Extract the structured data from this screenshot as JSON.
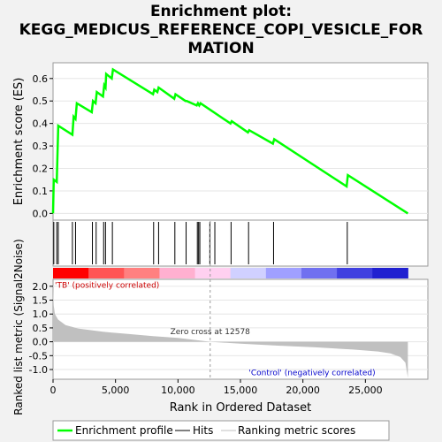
{
  "chart_data": {
    "type": "line",
    "title_lines": [
      "Enrichment plot:",
      "KEGG_MEDICUS_REFERENCE_COPI_VESICLE_FOR",
      "MATION"
    ],
    "es_panel": {
      "ylabel": "Enrichment score (ES)",
      "ylim": [
        -0.03,
        0.67
      ],
      "yticks": [
        "0.0",
        "0.1",
        "0.2",
        "0.3",
        "0.4",
        "0.5",
        "0.6"
      ],
      "ytick_values": [
        0.0,
        0.1,
        0.2,
        0.3,
        0.4,
        0.5,
        0.6
      ],
      "series": [
        {
          "name": "Enrichment profile",
          "color": "#00ff00",
          "points": [
            [
              0,
              0.0
            ],
            [
              60,
              0.15
            ],
            [
              300,
              0.14
            ],
            [
              420,
              0.39
            ],
            [
              1550,
              0.35
            ],
            [
              1650,
              0.43
            ],
            [
              1800,
              0.42
            ],
            [
              1900,
              0.49
            ],
            [
              3100,
              0.45
            ],
            [
              3200,
              0.5
            ],
            [
              3400,
              0.49
            ],
            [
              3500,
              0.54
            ],
            [
              4000,
              0.52
            ],
            [
              4100,
              0.57
            ],
            [
              4200,
              0.56
            ],
            [
              4250,
              0.62
            ],
            [
              4700,
              0.6
            ],
            [
              4800,
              0.64
            ],
            [
              8000,
              0.53
            ],
            [
              8100,
              0.55
            ],
            [
              8350,
              0.54
            ],
            [
              8450,
              0.56
            ],
            [
              9700,
              0.51
            ],
            [
              9800,
              0.53
            ],
            [
              10600,
              0.5
            ],
            [
              10700,
              0.5
            ],
            [
              11500,
              0.48
            ],
            [
              11600,
              0.49
            ],
            [
              11700,
              0.48
            ],
            [
              11800,
              0.49
            ],
            [
              14200,
              0.4
            ],
            [
              14300,
              0.41
            ],
            [
              15600,
              0.36
            ],
            [
              15700,
              0.37
            ],
            [
              17600,
              0.31
            ],
            [
              17700,
              0.33
            ],
            [
              23500,
              0.12
            ],
            [
              23600,
              0.17
            ],
            [
              28400,
              0.0
            ]
          ]
        }
      ],
      "hits": [
        60,
        300,
        420,
        1550,
        1800,
        3150,
        3450,
        4050,
        4200,
        4750,
        8050,
        8450,
        9750,
        10650,
        11550,
        11650,
        11750,
        12550,
        12950,
        14250,
        15650,
        17650,
        23550
      ]
    },
    "bar_colors": [
      "#ff0000",
      "#ff5555",
      "#ff8080",
      "#ffb0d0",
      "#ffd0f0",
      "#d0d0ff",
      "#a0a0ff",
      "#7070f0",
      "#4040e0",
      "#2020d0"
    ],
    "metric_panel": {
      "ylabel": "Ranked list metric (Signal2Noise)",
      "ylim": [
        -1.35,
        2.25
      ],
      "yticks": [
        "2.0",
        "1.5",
        "1.0",
        "0.5",
        "0.0",
        "-0.5",
        "-1.0"
      ],
      "ytick_values": [
        2.0,
        1.5,
        1.0,
        0.5,
        0.0,
        -0.5,
        -1.0
      ],
      "profile": [
        [
          0,
          2.0
        ],
        [
          60,
          1.3
        ],
        [
          150,
          1.0
        ],
        [
          400,
          0.8
        ],
        [
          1000,
          0.6
        ],
        [
          2000,
          0.48
        ],
        [
          4000,
          0.36
        ],
        [
          6000,
          0.28
        ],
        [
          8000,
          0.2
        ],
        [
          10000,
          0.14
        ],
        [
          12578,
          0.0
        ],
        [
          15000,
          -0.07
        ],
        [
          18000,
          -0.14
        ],
        [
          21000,
          -0.2
        ],
        [
          24000,
          -0.28
        ],
        [
          26000,
          -0.35
        ],
        [
          27000,
          -0.42
        ],
        [
          27800,
          -0.55
        ],
        [
          28200,
          -0.75
        ],
        [
          28400,
          -1.3
        ]
      ],
      "zero_cross_label": "Zero cross at 12578",
      "zero_cross": 12578,
      "pos_label": "'TB' (positively correlated)",
      "neg_label": "'Control' (negatively correlated)"
    },
    "xlabel": "Rank in Ordered Dataset",
    "xlim": [
      0,
      30000
    ],
    "xticks": [
      "0",
      "5,000",
      "10,000",
      "15,000",
      "20,000",
      "25,000"
    ],
    "xtick_values": [
      0,
      5000,
      10000,
      15000,
      20000,
      25000
    ],
    "legend": [
      "Enrichment profile",
      "Hits",
      "Ranking metric scores"
    ]
  }
}
